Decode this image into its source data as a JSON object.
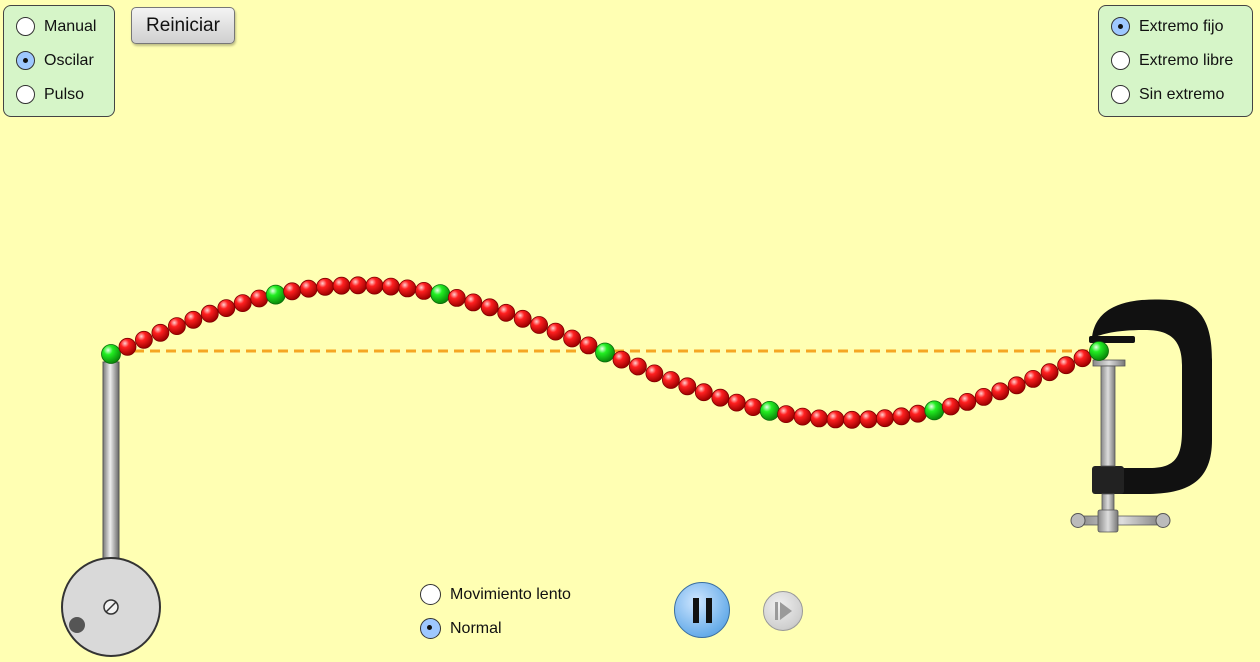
{
  "mode_panel": {
    "options": [
      {
        "label": "Manual",
        "selected": false
      },
      {
        "label": "Oscilar",
        "selected": true
      },
      {
        "label": "Pulso",
        "selected": false
      }
    ]
  },
  "reset_button": {
    "label": "Reiniciar"
  },
  "end_panel": {
    "options": [
      {
        "label": "Extremo fijo",
        "selected": true
      },
      {
        "label": "Extremo libre",
        "selected": false
      },
      {
        "label": "Sin extremo",
        "selected": false
      }
    ]
  },
  "speed_panel": {
    "options": [
      {
        "label": "Movimiento lento",
        "selected": false
      },
      {
        "label": "Normal",
        "selected": true
      }
    ]
  },
  "playback": {
    "pause_icon": "pause-icon",
    "step_icon": "step-forward-icon"
  },
  "colors": {
    "background": "#ffffb3",
    "panel": "#d6f5c8",
    "bead_red": "#e60000",
    "bead_green": "#22dd22",
    "reference_line": "#f5a623",
    "clamp": "#111111"
  }
}
